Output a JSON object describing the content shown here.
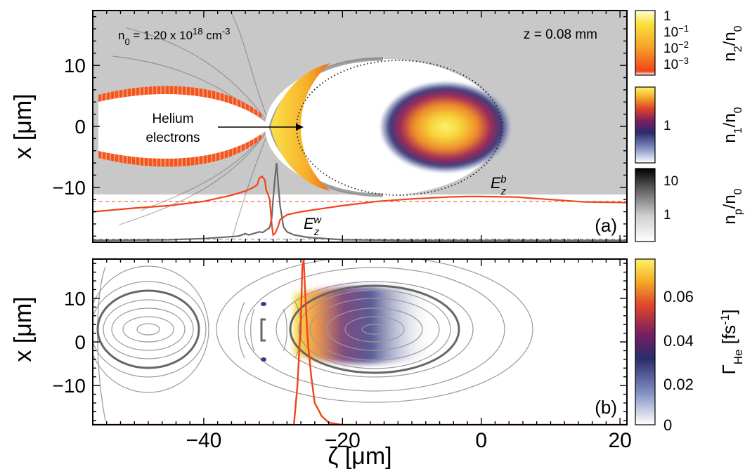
{
  "figure": {
    "panel_a": {
      "annotation_density": "n<tspan baseline-shift=\"sub\" font-size=\"13\">0</tspan> =  1.20 x 10<tspan baseline-shift=\"super\" font-size=\"13\">18</tspan> cm<tspan baseline-shift=\"super\" font-size=\"13\">-3</tspan>",
      "annotation_density_text": "n0 = 1.20 x 10^18 cm^-3",
      "annotation_z": "z =  0.08 mm",
      "helium_label_line1": "Helium",
      "helium_label_line2": "electrons",
      "label_Ezw": "E_z^w",
      "label_Ezb": "E_z^b",
      "panel_label": "(a)"
    },
    "panel_b": {
      "panel_label": "(b)"
    },
    "xaxis": {
      "label": "ζ [μm]",
      "ticks": [
        "-40",
        "-20",
        "0",
        "20"
      ]
    },
    "yaxis": {
      "label": "x [μm]",
      "ticks_a": [
        "10",
        "0",
        "-10"
      ],
      "ticks_b": [
        "10",
        "0",
        "-10"
      ]
    },
    "colorbars": [
      {
        "name": "n2/n0",
        "label": "n₂/n₀",
        "ticks": [
          "1",
          "10⁻¹",
          "10⁻²",
          "10⁻³"
        ],
        "scale": "log",
        "colormap": "hot"
      },
      {
        "name": "n1/n0",
        "label": "n₁/n₀",
        "ticks": [
          "1"
        ],
        "scale": "log",
        "colormap": "thermal"
      },
      {
        "name": "np/n0",
        "label": "n_p/n₀",
        "ticks": [
          "10",
          "1"
        ],
        "scale": "log",
        "colormap": "grays"
      },
      {
        "name": "Gamma_He",
        "label": "Γ_He [fs⁻¹]",
        "ticks": [
          "0.06",
          "0.04",
          "0.02",
          "0"
        ],
        "scale": "linear",
        "colormap": "thermal"
      }
    ],
    "colors": {
      "field_line": "#f0441a",
      "wake_line": "#6a6a6a",
      "plasma_bg": "#c8c8c8",
      "helium": "#f25a18",
      "beam_core": "#f4e12e",
      "beam_edge": "#3a3c7c"
    }
  },
  "chart_data": [
    {
      "type": "heatmap",
      "panel": "a",
      "xlabel": "ζ [μm]",
      "ylabel": "x [μm]",
      "xlim": [
        -56,
        21
      ],
      "ylim": [
        -19,
        19
      ],
      "grid": false,
      "layers": [
        "n_p/n_0 (gray)",
        "n_1/n_0 driver beam",
        "n_2/n_0 helium electrons"
      ],
      "beam_center": [
        -13,
        0
      ],
      "bubble_center": [
        -18,
        0
      ],
      "series": [
        {
          "name": "E_z^w",
          "x": [
            -56,
            -45,
            -40,
            -35,
            -34,
            -33.5,
            -32,
            -31.5,
            -31,
            -30.5,
            -30.2,
            -30,
            -29.7,
            -29.5,
            -29.3,
            -29,
            -28.5,
            -28,
            -27,
            -25,
            -20,
            -10,
            0,
            10,
            21
          ],
          "y": [
            -18.7,
            -18.6,
            -18.4,
            -18,
            -17.6,
            -17.8,
            -17.3,
            -17.4,
            -17,
            -16.6,
            -15,
            -12,
            -8,
            -6,
            -9,
            -13,
            -16.5,
            -17.3,
            -17.8,
            -18.2,
            -18.6,
            -18.7,
            -18.7,
            -18.7,
            -18.7
          ]
        },
        {
          "name": "E_z^b",
          "x": [
            -56,
            -50,
            -45,
            -40,
            -36,
            -34,
            -33,
            -32.3,
            -32,
            -31.6,
            -31.2,
            -31,
            -30.7,
            -30.5,
            -30.2,
            -30,
            -29.7,
            -29.3,
            -29,
            -28,
            -26,
            -23,
            -20,
            -15,
            -10,
            -5,
            -2,
            0,
            5,
            10,
            15,
            21
          ],
          "y": [
            -14,
            -13.4,
            -13,
            -12.3,
            -11.3,
            -10.6,
            -10.1,
            -9.6,
            -8.5,
            -8.2,
            -8.8,
            -10.5,
            -11.2,
            -12,
            -16,
            -17.8,
            -17.5,
            -16.5,
            -15.3,
            -14.5,
            -14,
            -13.5,
            -13,
            -12.3,
            -11.9,
            -11.6,
            -11.5,
            -11.5,
            -11.6,
            -12,
            -12.4,
            -12.5
          ]
        }
      ],
      "dashed_lines": [
        {
          "name": "E_z^b zero",
          "y": -12.3
        },
        {
          "name": "E_z^w zero",
          "y": -18.5
        }
      ]
    },
    {
      "type": "heatmap",
      "panel": "b",
      "xlabel": "ζ [μm]",
      "ylabel": "x [μm]",
      "xlim": [
        -56,
        21
      ],
      "ylim": [
        -19,
        19
      ],
      "grid": false,
      "colorbar": {
        "label": "Γ_He [fs⁻¹]",
        "range": [
          0,
          0.075
        ]
      },
      "contours": "wakefield potential (gray)",
      "series": [
        {
          "name": "ionization front",
          "x": [
            -56,
            -30,
            -27,
            -26.5,
            -26,
            -25.8,
            -25.6,
            -25.4,
            -25,
            -24.5,
            -24,
            -23,
            -22,
            -20,
            0,
            21
          ],
          "y": [
            -19,
            -19,
            -19,
            -10,
            5,
            17,
            19,
            12,
            0,
            -8,
            -14,
            -17,
            -18.5,
            -19,
            -19,
            -19
          ]
        }
      ]
    }
  ]
}
